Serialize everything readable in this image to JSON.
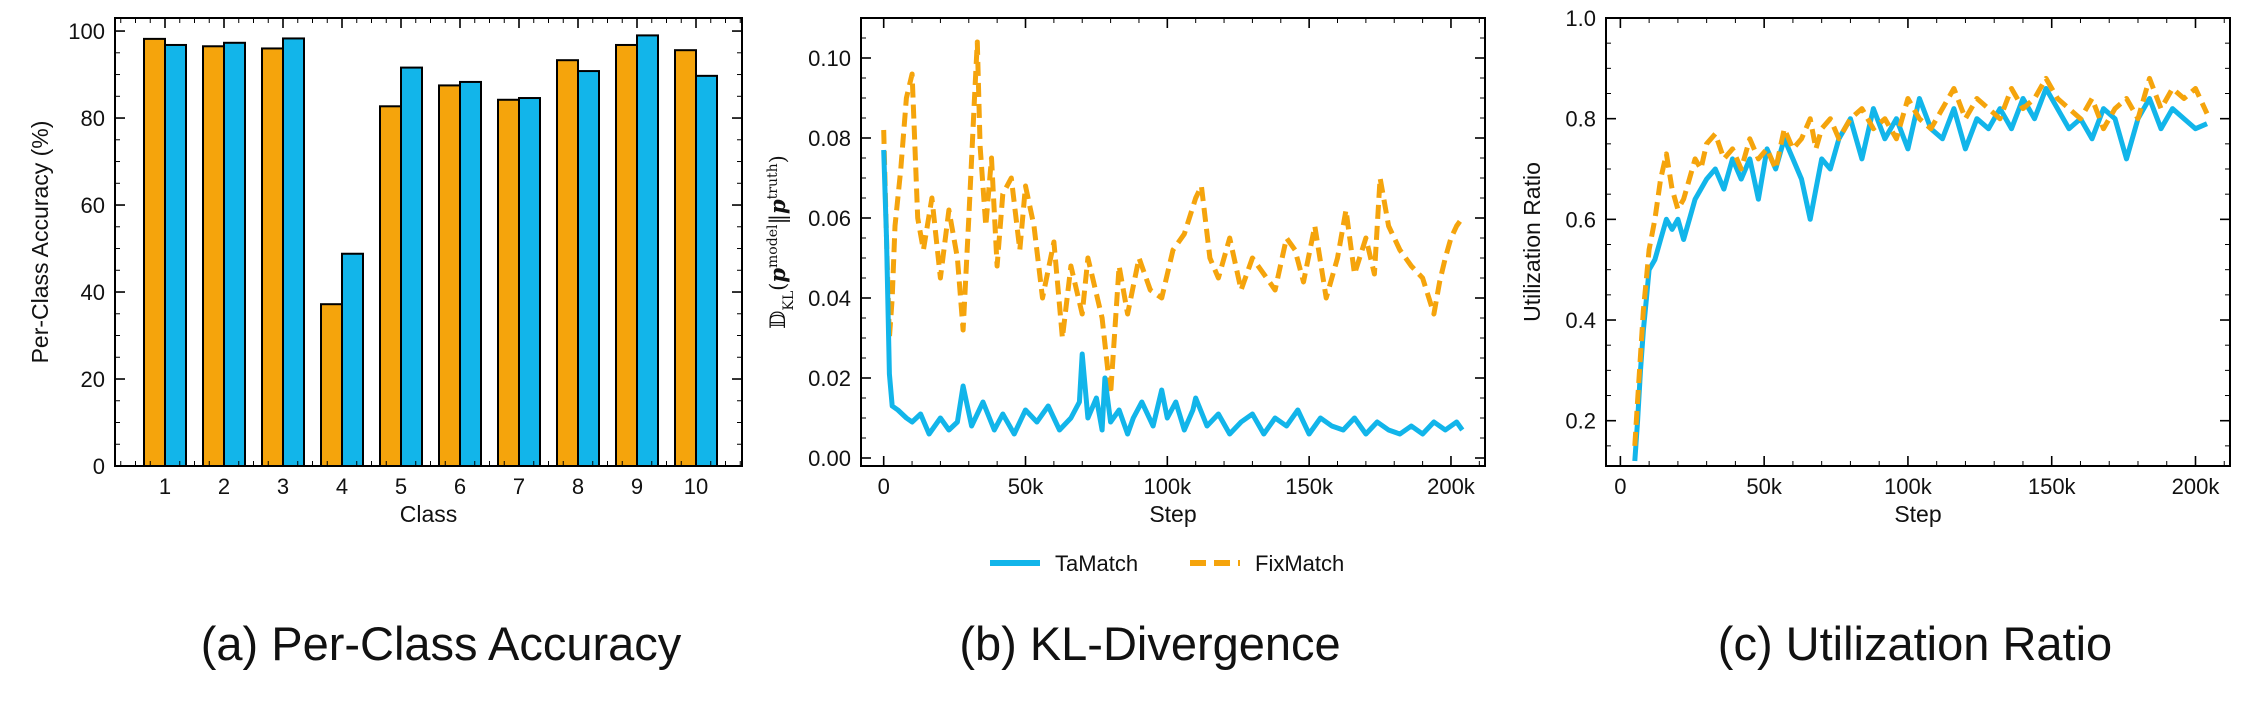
{
  "colors": {
    "tamatch": "#12b5ea",
    "fixmatch": "#f5a40c"
  },
  "legend": {
    "items": [
      {
        "label": "TaMatch",
        "style": "solid",
        "color": "#12b5ea"
      },
      {
        "label": "FixMatch",
        "style": "dashed",
        "color": "#f5a40c"
      }
    ]
  },
  "captions": {
    "a": "(a) Per-Class Accuracy",
    "b": "(b) KL-Divergence",
    "c": "(c) Utilization Ratio"
  },
  "chart_data": [
    {
      "id": "per-class-accuracy",
      "type": "bar",
      "xlabel": "Class",
      "ylabel": "Per-Class Accuracy (%)",
      "ylim": [
        0,
        103
      ],
      "yticks": [
        0,
        20,
        40,
        60,
        80,
        100
      ],
      "categories": [
        "1",
        "2",
        "3",
        "4",
        "5",
        "6",
        "7",
        "8",
        "9",
        "10"
      ],
      "series": [
        {
          "name": "FixMatch",
          "color": "#f5a40c",
          "values": [
            98.2,
            96.5,
            96.0,
            37.2,
            82.7,
            87.5,
            84.2,
            93.3,
            96.8,
            95.6
          ]
        },
        {
          "name": "TaMatch",
          "color": "#12b5ea",
          "values": [
            96.8,
            97.3,
            98.3,
            48.8,
            91.6,
            88.3,
            84.6,
            90.8,
            99.0,
            89.7
          ]
        }
      ],
      "grid": false
    },
    {
      "id": "kl-divergence",
      "type": "line",
      "xlabel": "Step",
      "ylabel": "𝔻KL(pmodel‖ptruth)",
      "xlim": [
        -8000,
        212000
      ],
      "ylim": [
        -0.002,
        0.11
      ],
      "xticks": [
        0,
        50000,
        100000,
        150000,
        200000
      ],
      "xtick_labels": [
        "0",
        "50k",
        "100k",
        "150k",
        "200k"
      ],
      "yticks": [
        0.0,
        0.02,
        0.04,
        0.06,
        0.08,
        0.1
      ],
      "ytick_labels": [
        "0.00",
        "0.02",
        "0.04",
        "0.06",
        "0.08",
        "0.10"
      ],
      "series": [
        {
          "name": "TaMatch",
          "style": "solid",
          "color": "#12b5ea",
          "x": [
            0,
            1000,
            2000,
            3000,
            5000,
            8000,
            10000,
            13000,
            16000,
            20000,
            23000,
            26000,
            28000,
            31000,
            35000,
            39000,
            42000,
            46000,
            50000,
            54000,
            58000,
            62000,
            66000,
            69000,
            70000,
            72000,
            75000,
            77000,
            78000,
            80000,
            83000,
            86000,
            88000,
            91000,
            95000,
            98000,
            100000,
            103000,
            106000,
            109000,
            110000,
            114000,
            118000,
            122000,
            126000,
            130000,
            134000,
            138000,
            142000,
            146000,
            150000,
            154000,
            158000,
            162000,
            166000,
            170000,
            174000,
            178000,
            182000,
            186000,
            190000,
            194000,
            198000,
            202000,
            204000
          ],
          "y": [
            0.077,
            0.055,
            0.021,
            0.013,
            0.012,
            0.01,
            0.009,
            0.011,
            0.006,
            0.01,
            0.007,
            0.009,
            0.018,
            0.008,
            0.014,
            0.007,
            0.011,
            0.006,
            0.012,
            0.009,
            0.013,
            0.007,
            0.01,
            0.014,
            0.026,
            0.01,
            0.015,
            0.007,
            0.02,
            0.009,
            0.012,
            0.006,
            0.01,
            0.014,
            0.008,
            0.017,
            0.01,
            0.014,
            0.007,
            0.012,
            0.015,
            0.008,
            0.011,
            0.006,
            0.009,
            0.011,
            0.006,
            0.01,
            0.008,
            0.012,
            0.006,
            0.01,
            0.008,
            0.007,
            0.01,
            0.006,
            0.009,
            0.007,
            0.006,
            0.008,
            0.006,
            0.009,
            0.007,
            0.009,
            0.007
          ]
        },
        {
          "name": "FixMatch",
          "style": "dashed",
          "color": "#f5a40c",
          "x": [
            0,
            1000,
            2000,
            3000,
            4000,
            6000,
            8000,
            10000,
            12000,
            14000,
            17000,
            20000,
            23000,
            26000,
            28000,
            30000,
            32000,
            33000,
            34000,
            36000,
            38000,
            40000,
            42000,
            45000,
            48000,
            50000,
            53000,
            56000,
            60000,
            63000,
            66000,
            70000,
            72000,
            74000,
            77000,
            79000,
            80000,
            83000,
            86000,
            90000,
            94000,
            98000,
            102000,
            106000,
            110000,
            112000,
            115000,
            118000,
            122000,
            126000,
            130000,
            134000,
            138000,
            142000,
            145000,
            148000,
            152000,
            156000,
            160000,
            163000,
            166000,
            170000,
            173000,
            175000,
            178000,
            182000,
            186000,
            190000,
            194000,
            196000,
            198000,
            200000,
            202000,
            204000
          ],
          "y": [
            0.082,
            0.055,
            0.03,
            0.04,
            0.058,
            0.072,
            0.09,
            0.096,
            0.06,
            0.052,
            0.065,
            0.045,
            0.062,
            0.05,
            0.032,
            0.06,
            0.09,
            0.104,
            0.078,
            0.058,
            0.075,
            0.048,
            0.066,
            0.07,
            0.052,
            0.068,
            0.058,
            0.04,
            0.054,
            0.03,
            0.048,
            0.036,
            0.05,
            0.044,
            0.035,
            0.022,
            0.016,
            0.048,
            0.036,
            0.05,
            0.042,
            0.04,
            0.052,
            0.056,
            0.065,
            0.068,
            0.05,
            0.045,
            0.055,
            0.042,
            0.05,
            0.046,
            0.042,
            0.055,
            0.052,
            0.044,
            0.058,
            0.04,
            0.05,
            0.062,
            0.046,
            0.055,
            0.046,
            0.07,
            0.058,
            0.052,
            0.048,
            0.045,
            0.036,
            0.044,
            0.05,
            0.055,
            0.058,
            0.06
          ]
        }
      ],
      "grid": false
    },
    {
      "id": "utilization-ratio",
      "type": "line",
      "xlabel": "Step",
      "ylabel": "Utilization Ratio",
      "xlim": [
        -5000,
        212000
      ],
      "ylim": [
        0.11,
        1.0
      ],
      "xticks": [
        0,
        50000,
        100000,
        150000,
        200000
      ],
      "xtick_labels": [
        "0",
        "50k",
        "100k",
        "150k",
        "200k"
      ],
      "yticks": [
        0.2,
        0.4,
        0.6,
        0.8,
        1.0
      ],
      "ytick_labels": [
        "0.2",
        "0.4",
        "0.6",
        "0.8",
        "1.0"
      ],
      "series": [
        {
          "name": "TaMatch",
          "style": "solid",
          "color": "#12b5ea",
          "x": [
            5000,
            6000,
            7000,
            8000,
            9000,
            10000,
            12000,
            14000,
            16000,
            18000,
            20000,
            22000,
            24000,
            26000,
            28000,
            30000,
            33000,
            36000,
            39000,
            42000,
            45000,
            48000,
            51000,
            54000,
            57000,
            60000,
            63000,
            66000,
            68000,
            70000,
            73000,
            76000,
            80000,
            84000,
            88000,
            92000,
            96000,
            100000,
            104000,
            108000,
            112000,
            116000,
            120000,
            124000,
            128000,
            132000,
            136000,
            140000,
            144000,
            148000,
            152000,
            156000,
            160000,
            164000,
            168000,
            172000,
            176000,
            180000,
            184000,
            188000,
            192000,
            196000,
            200000,
            204000
          ],
          "y": [
            0.12,
            0.2,
            0.3,
            0.38,
            0.44,
            0.5,
            0.52,
            0.56,
            0.6,
            0.58,
            0.6,
            0.56,
            0.6,
            0.64,
            0.66,
            0.68,
            0.7,
            0.66,
            0.72,
            0.68,
            0.72,
            0.64,
            0.74,
            0.7,
            0.76,
            0.72,
            0.68,
            0.6,
            0.66,
            0.72,
            0.7,
            0.76,
            0.8,
            0.72,
            0.82,
            0.76,
            0.8,
            0.74,
            0.84,
            0.78,
            0.76,
            0.82,
            0.74,
            0.8,
            0.78,
            0.82,
            0.78,
            0.84,
            0.8,
            0.86,
            0.82,
            0.78,
            0.8,
            0.76,
            0.82,
            0.8,
            0.72,
            0.8,
            0.84,
            0.78,
            0.82,
            0.8,
            0.78,
            0.79
          ]
        },
        {
          "name": "FixMatch",
          "style": "dashed",
          "color": "#f5a40c",
          "x": [
            5000,
            6000,
            7000,
            8000,
            9000,
            10000,
            12000,
            14000,
            16000,
            18000,
            20000,
            22000,
            24000,
            26000,
            28000,
            30000,
            33000,
            36000,
            39000,
            42000,
            45000,
            48000,
            51000,
            54000,
            57000,
            60000,
            63000,
            66000,
            68000,
            70000,
            73000,
            76000,
            80000,
            84000,
            88000,
            92000,
            96000,
            100000,
            104000,
            108000,
            112000,
            116000,
            120000,
            124000,
            128000,
            132000,
            136000,
            140000,
            144000,
            148000,
            152000,
            156000,
            160000,
            164000,
            168000,
            172000,
            176000,
            180000,
            184000,
            188000,
            192000,
            196000,
            200000,
            204000
          ],
          "y": [
            0.15,
            0.24,
            0.33,
            0.42,
            0.48,
            0.54,
            0.6,
            0.68,
            0.73,
            0.66,
            0.62,
            0.64,
            0.68,
            0.72,
            0.7,
            0.75,
            0.77,
            0.72,
            0.74,
            0.7,
            0.76,
            0.72,
            0.74,
            0.7,
            0.78,
            0.74,
            0.76,
            0.8,
            0.74,
            0.78,
            0.8,
            0.76,
            0.8,
            0.82,
            0.78,
            0.8,
            0.76,
            0.84,
            0.8,
            0.78,
            0.82,
            0.86,
            0.8,
            0.84,
            0.82,
            0.8,
            0.86,
            0.82,
            0.84,
            0.88,
            0.84,
            0.82,
            0.8,
            0.84,
            0.78,
            0.82,
            0.84,
            0.8,
            0.88,
            0.82,
            0.86,
            0.84,
            0.86,
            0.81
          ]
        }
      ],
      "grid": false
    }
  ]
}
